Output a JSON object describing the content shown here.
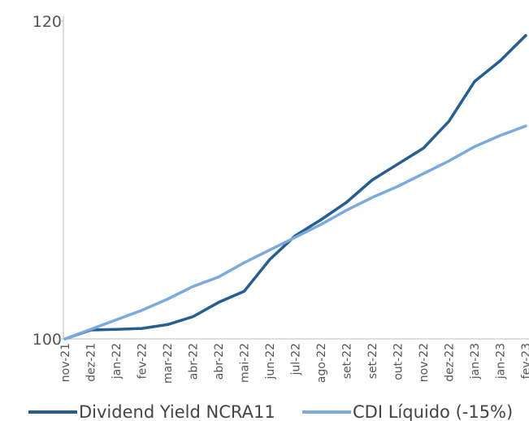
{
  "chart_data": {
    "type": "line",
    "categories": [
      "nov-21",
      "dez-21",
      "jan-22",
      "fev-22",
      "mar-22",
      "abr-22",
      "abr-22",
      "mai-22",
      "jun-22",
      "jul-22",
      "ago-22",
      "set-22",
      "set-22",
      "out-22",
      "nov-22",
      "dez-22",
      "jan-23",
      "jan-23",
      "fev-23"
    ],
    "series": [
      {
        "name": "Dividend Yield NCRA11",
        "color": "#255e91",
        "values": [
          100,
          100.56,
          100.6,
          100.66,
          100.9,
          101.4,
          102.3,
          103.0,
          105.0,
          106.5,
          107.5,
          108.6,
          110.0,
          111.0,
          112.0,
          113.7,
          116.2,
          117.5,
          119.1
        ]
      },
      {
        "name": "CDI Líquido (-15%)",
        "color": "#7aaade",
        "values": [
          100,
          100.6,
          101.2,
          101.8,
          102.5,
          103.3,
          103.9,
          104.8,
          105.6,
          106.4,
          107.2,
          108.1,
          108.9,
          109.6,
          110.4,
          111.2,
          112.1,
          112.8,
          113.4
        ]
      }
    ],
    "ylim": [
      100,
      120
    ],
    "yticks": [
      100,
      120
    ],
    "grid": false,
    "legend": "bottom"
  }
}
